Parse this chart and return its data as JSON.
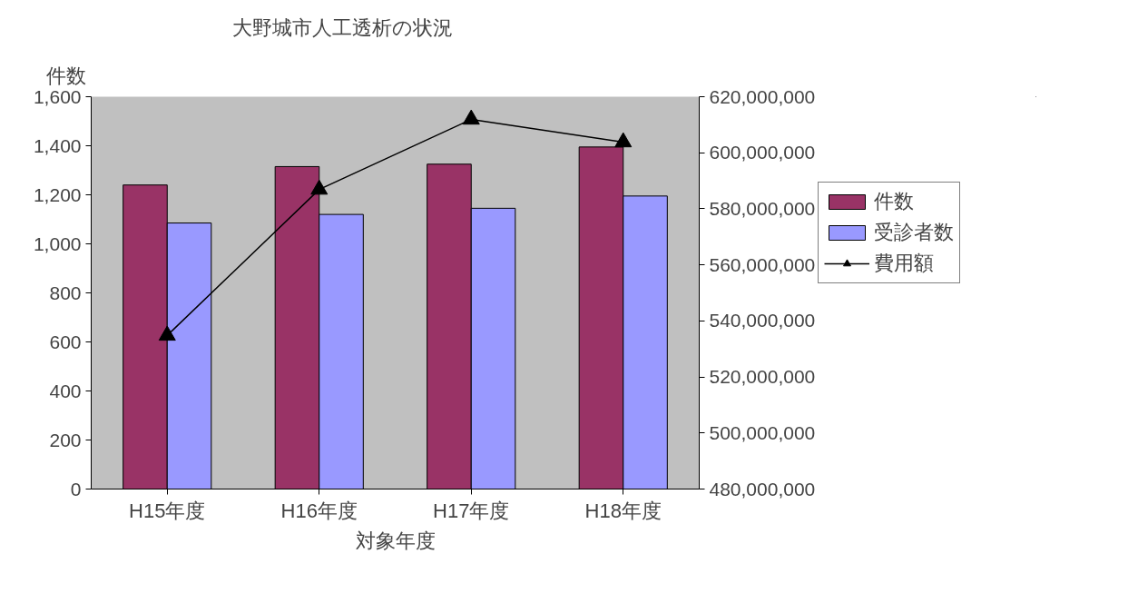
{
  "chart_data": {
    "type": "bar",
    "title": "大野城市人工透析の状況",
    "xlabel": "対象年度",
    "ylabel": "件数",
    "categories": [
      "H15年度",
      "H16年度",
      "H17年度",
      "H18年度"
    ],
    "series": [
      {
        "name": "件数",
        "color": "#993366",
        "values": [
          1240,
          1315,
          1325,
          1395
        ]
      },
      {
        "name": "受診者数",
        "color": "#9999ff",
        "values": [
          1085,
          1120,
          1145,
          1195
        ]
      },
      {
        "name": "費用額",
        "type": "line",
        "axis": "y2",
        "color": "#000000",
        "values": [
          534800000,
          586900000,
          611900000,
          603800000
        ]
      }
    ],
    "ylim": [
      0,
      1600
    ],
    "yticks": [
      0,
      200,
      400,
      600,
      800,
      {
        "value": 1000,
        "label": "1,000"
      },
      {
        "value": 1200,
        "label": "1,200"
      },
      {
        "value": 1400,
        "label": "1,400"
      },
      {
        "value": 1600,
        "label": "1,600"
      }
    ],
    "y2lim": [
      480000000,
      620000000
    ],
    "y2ticks": [
      {
        "value": 480000000,
        "label": "480,000,000"
      },
      {
        "value": 500000000,
        "label": "500,000,000"
      },
      {
        "value": 520000000,
        "label": "520,000,000"
      },
      {
        "value": 540000000,
        "label": "540,000,000"
      },
      {
        "value": 560000000,
        "label": "560,000,000"
      },
      {
        "value": 580000000,
        "label": "580,000,000"
      },
      {
        "value": 600000000,
        "label": "600,000,000"
      },
      {
        "value": 620000000,
        "label": "620,000,000"
      }
    ],
    "marker": "triangle",
    "legend": "right"
  }
}
